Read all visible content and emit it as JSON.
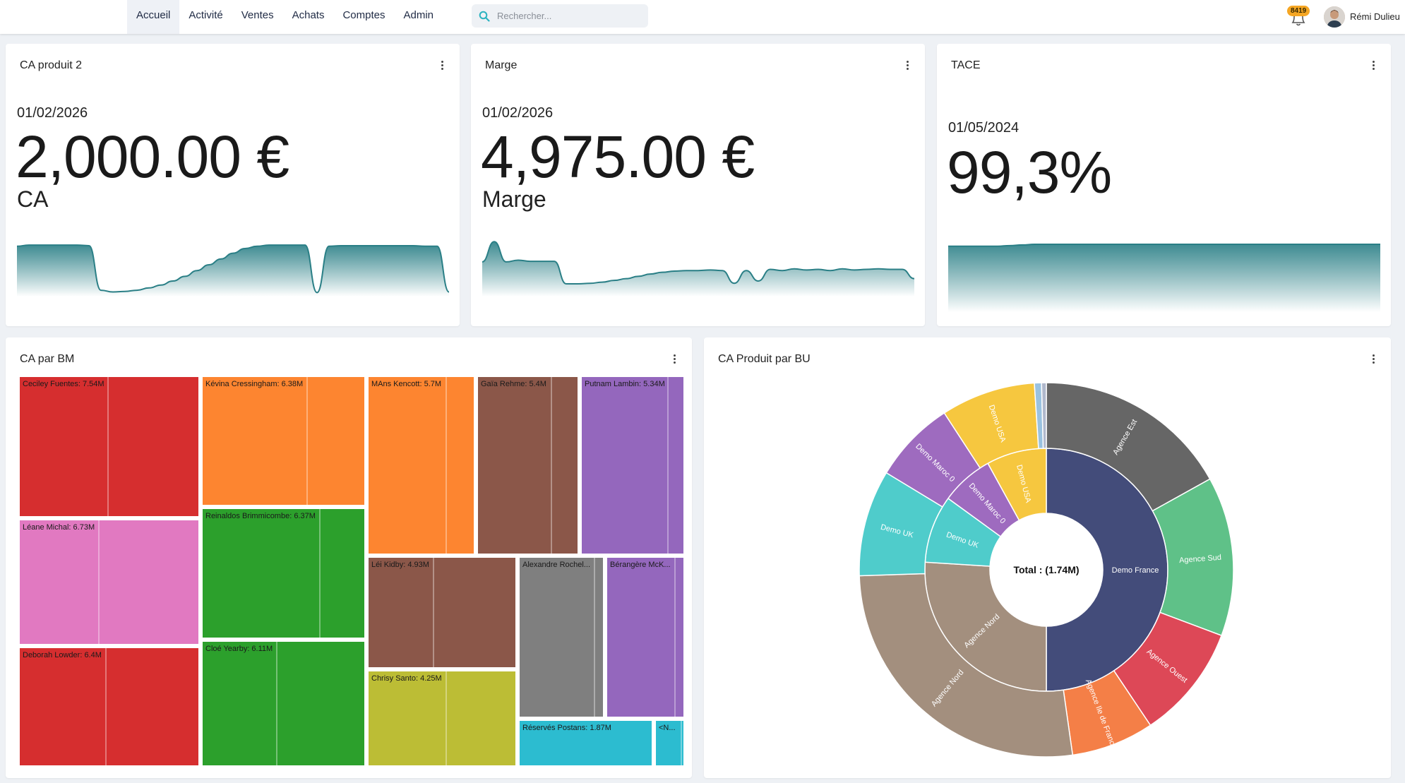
{
  "nav": {
    "items": [
      "Accueil",
      "Activité",
      "Ventes",
      "Achats",
      "Comptes",
      "Admin"
    ],
    "active": 0
  },
  "search": {
    "placeholder": "Rechercher..."
  },
  "notifications": {
    "count": "8419"
  },
  "user": {
    "name": "Rémi Dulieu"
  },
  "colors": {
    "accent": "#2a7f86",
    "kpi_fill_top": "#2a7f86",
    "kpi_fill_bottom": "#ffffff"
  },
  "kpis": [
    {
      "title": "CA produit 2",
      "date": "01/02/2026",
      "value": "2,000.00 €",
      "label": "CA",
      "trend": [
        0.82,
        0.84,
        0.84,
        0.84,
        0.84,
        0.84,
        0.83,
        0.06,
        0.03,
        0.04,
        0.06,
        0.1,
        0.15,
        0.22,
        0.3,
        0.4,
        0.5,
        0.6,
        0.7,
        0.78,
        0.82,
        0.84,
        0.84,
        0.84,
        0.84,
        0.02,
        0.82,
        0.83,
        0.83,
        0.83,
        0.83,
        0.83,
        0.83,
        0.83,
        0.82,
        0.82,
        0.03
      ]
    },
    {
      "title": "Marge",
      "date": "01/02/2026",
      "value": "4,975.00 €",
      "label": "Marge",
      "trend": [
        0.55,
        0.9,
        0.55,
        0.58,
        0.56,
        0.56,
        0.56,
        0.17,
        0.17,
        0.18,
        0.2,
        0.23,
        0.26,
        0.3,
        0.34,
        0.37,
        0.39,
        0.4,
        0.4,
        0.41,
        0.4,
        0.18,
        0.4,
        0.22,
        0.42,
        0.4,
        0.43,
        0.41,
        0.42,
        0.4,
        0.43,
        0.41,
        0.42,
        0.43,
        0.42,
        0.42,
        0.26
      ]
    },
    {
      "title": "TACE",
      "date": "01/05/2024",
      "value": "99,3%",
      "label": "",
      "trend": [
        0.97,
        0.97,
        0.97,
        0.97,
        0.97,
        0.98,
        0.99,
        1,
        1,
        1,
        1,
        1,
        1,
        1,
        1,
        1,
        1,
        1,
        1,
        1,
        1,
        1,
        1,
        1,
        1,
        1,
        1,
        1,
        1,
        1,
        1,
        1,
        1,
        1,
        1,
        1
      ]
    }
  ],
  "treemap": {
    "title": "CA par BM",
    "cells": [
      {
        "label": "Ceciley Fuentes: 7.54M",
        "color": "#d62e2f"
      },
      {
        "label": "Léane Michal: 6.73M",
        "color": "#e179c1"
      },
      {
        "label": "Deborah Lowder: 6.4M",
        "color": "#d62e2f"
      },
      {
        "label": "Kévina Cressingham: 6.38M",
        "color": "#fd8530"
      },
      {
        "label": "Reinaldos Brimmicombe: 6.37M",
        "color": "#2ca02c"
      },
      {
        "label": "Cloé Yearby: 6.11M",
        "color": "#2ca02c"
      },
      {
        "label": "MAns Kencott: 5.7M",
        "color": "#fd8530"
      },
      {
        "label": "Gaïa Rehme: 5.4M",
        "color": "#8b5749"
      },
      {
        "label": "Putnam Lambin: 5.34M",
        "color": "#9467bd"
      },
      {
        "label": "Léi Kidby: 4.93M",
        "color": "#8b5749"
      },
      {
        "label": "Chrisy Santo: 4.25M",
        "color": "#bcbd35"
      },
      {
        "label": "Alexandre Rochel...",
        "color": "#7f7f7f"
      },
      {
        "label": "Bérangère McK...",
        "color": "#9467bd"
      },
      {
        "label": "Réservés Postans: 1.87M",
        "color": "#2cbcd0"
      },
      {
        "label": "<N...",
        "color": "#2cbcd0"
      }
    ]
  },
  "sunburst": {
    "title": "CA Produit par BU",
    "center_label": "Total : (1.74M)",
    "inner": [
      {
        "label": "Demo France",
        "value": 0.5,
        "color": "#434c7a"
      },
      {
        "label": "Agence Nord",
        "value": 0.26,
        "color": "#a38f7e"
      },
      {
        "label": "Demo UK",
        "value": 0.09,
        "color": "#4fcccb"
      },
      {
        "label": "Demo Maroc 0",
        "value": 0.07,
        "color": "#9e6bbf"
      },
      {
        "label": "Demo USA",
        "value": 0.08,
        "color": "#f6c73f"
      }
    ],
    "outer": [
      {
        "label": "Agence Est",
        "value": 0.166,
        "color": "#666666"
      },
      {
        "label": "Agence Sud",
        "value": 0.135,
        "color": "#5fc188"
      },
      {
        "label": "Agence Ouest",
        "value": 0.097,
        "color": "#dd4857"
      },
      {
        "label": "Agence Ile de France",
        "value": 0.07,
        "color": "#f47f47"
      },
      {
        "label": "Agence Nord",
        "value": 0.262,
        "color": "#a38f7e"
      },
      {
        "label": "Demo UK",
        "value": 0.09,
        "color": "#4fcccb"
      },
      {
        "label": "Demo Maroc 0",
        "value": 0.07,
        "color": "#9e6bbf"
      },
      {
        "label": "Demo USA",
        "value": 0.08,
        "color": "#f6c73f"
      },
      {
        "label": "",
        "value": 0.006,
        "color": "#9ac2e0"
      },
      {
        "label": "",
        "value": 0.004,
        "color": "#b0b8cc"
      }
    ]
  }
}
